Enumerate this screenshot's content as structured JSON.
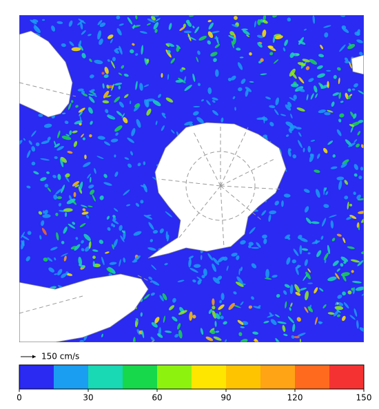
{
  "legend": {
    "reference_arrow_label": "150 cm/s",
    "colorbar": {
      "range": [
        0,
        150
      ],
      "ticks": [
        0,
        30,
        60,
        90,
        120,
        150
      ],
      "colors": [
        "#2a2af2",
        "#1a9ef2",
        "#19d8b4",
        "#16d84a",
        "#8ef20f",
        "#ffe600",
        "#ffc400",
        "#ffa414",
        "#ff6a1e",
        "#f53232"
      ]
    }
  }
}
